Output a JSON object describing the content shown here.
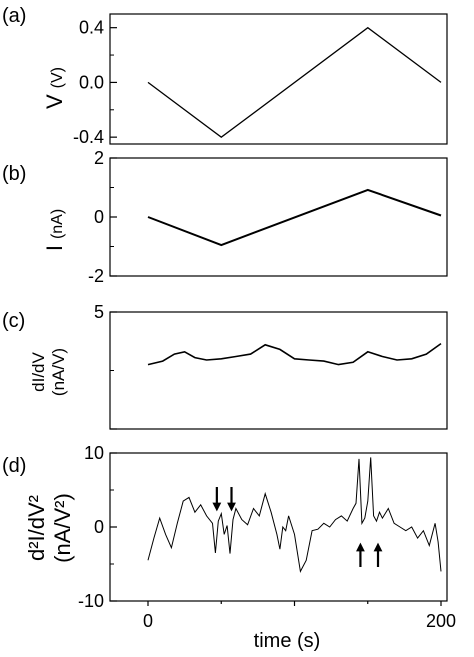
{
  "xlabel": "time (s)",
  "x_tick_labels": [
    "0",
    "200"
  ],
  "chart_data": [
    {
      "type": "line",
      "panel": "(a)",
      "ylabel_symbol": "V",
      "ylabel_unit": "(V)",
      "xlim": [
        0,
        200
      ],
      "ylim": [
        -0.45,
        0.5
      ],
      "y_ticks": [
        -0.4,
        0.0,
        0.4
      ],
      "y_tick_labels": [
        "-0.4",
        "0.0",
        "0.4"
      ],
      "x": [
        0,
        50,
        150,
        200
      ],
      "y": [
        0.0,
        -0.4,
        0.4,
        0.0
      ]
    },
    {
      "type": "line",
      "panel": "(b)",
      "ylabel_symbol": "I",
      "ylabel_unit": "(nA)",
      "xlim": [
        0,
        200
      ],
      "ylim": [
        -2,
        2
      ],
      "y_ticks": [
        -2,
        0,
        2
      ],
      "y_tick_labels": [
        "-2",
        "0",
        "2"
      ],
      "x": [
        0,
        50,
        150,
        200
      ],
      "y": [
        0.0,
        -0.95,
        0.92,
        0.05
      ]
    },
    {
      "type": "line",
      "panel": "(c)",
      "ylabel_line1": "dI/dV",
      "ylabel_line2": "(nA/V)",
      "xlim": [
        0,
        200
      ],
      "ylim": [
        0,
        5
      ],
      "y_ticks": [
        0,
        5
      ],
      "y_tick_labels": [
        "",
        "5"
      ],
      "x": [
        0,
        10,
        18,
        25,
        32,
        40,
        50,
        60,
        70,
        80,
        90,
        100,
        110,
        120,
        130,
        140,
        150,
        160,
        170,
        180,
        190,
        200
      ],
      "y": [
        2.75,
        2.9,
        3.2,
        3.3,
        3.05,
        2.95,
        3.0,
        3.1,
        3.2,
        3.6,
        3.4,
        3.0,
        2.95,
        2.9,
        2.75,
        2.85,
        3.3,
        3.1,
        2.95,
        3.0,
        3.2,
        3.65
      ]
    },
    {
      "type": "line",
      "panel": "(d)",
      "ylabel_line1": "d²I/dV²",
      "ylabel_line2": "(nA/V²)",
      "xlim": [
        0,
        200
      ],
      "ylim": [
        -10,
        10
      ],
      "y_ticks": [
        -10,
        0,
        10
      ],
      "y_tick_labels": [
        "-10",
        "0",
        "10"
      ],
      "x": [
        0,
        4,
        8,
        12,
        16,
        20,
        24,
        28,
        32,
        36,
        40,
        44,
        46,
        48,
        50,
        52,
        54,
        56,
        58,
        60,
        64,
        68,
        72,
        76,
        80,
        84,
        88,
        90,
        92,
        94,
        96,
        100,
        104,
        108,
        112,
        116,
        120,
        124,
        128,
        132,
        136,
        140,
        142,
        144,
        146,
        148,
        150,
        152,
        154,
        156,
        158,
        160,
        164,
        168,
        172,
        176,
        180,
        184,
        188,
        192,
        196,
        198,
        200
      ],
      "y": [
        -4.5,
        -1.5,
        1.2,
        -1.0,
        -2.8,
        0.5,
        3.5,
        4.0,
        2.0,
        3.0,
        1.5,
        0.5,
        -3.5,
        0.8,
        1.8,
        -1.0,
        0.2,
        -3.6,
        1.0,
        2.5,
        1.0,
        0.3,
        2.5,
        1.5,
        4.5,
        2.0,
        -1.0,
        -3.0,
        0.0,
        -0.5,
        1.5,
        -1.0,
        -6.0,
        -4.5,
        -0.5,
        -0.3,
        0.5,
        0.0,
        1.0,
        1.5,
        0.8,
        2.5,
        3.2,
        9.2,
        0.5,
        1.2,
        3.5,
        9.4,
        1.5,
        0.8,
        2.0,
        1.2,
        2.5,
        0.5,
        0.0,
        -0.5,
        0.0,
        -1.5,
        -0.5,
        -2.5,
        0.5,
        -2.0,
        -6.0
      ],
      "down_arrow_times": [
        47,
        57
      ],
      "up_arrow_times": [
        145,
        157
      ]
    }
  ]
}
